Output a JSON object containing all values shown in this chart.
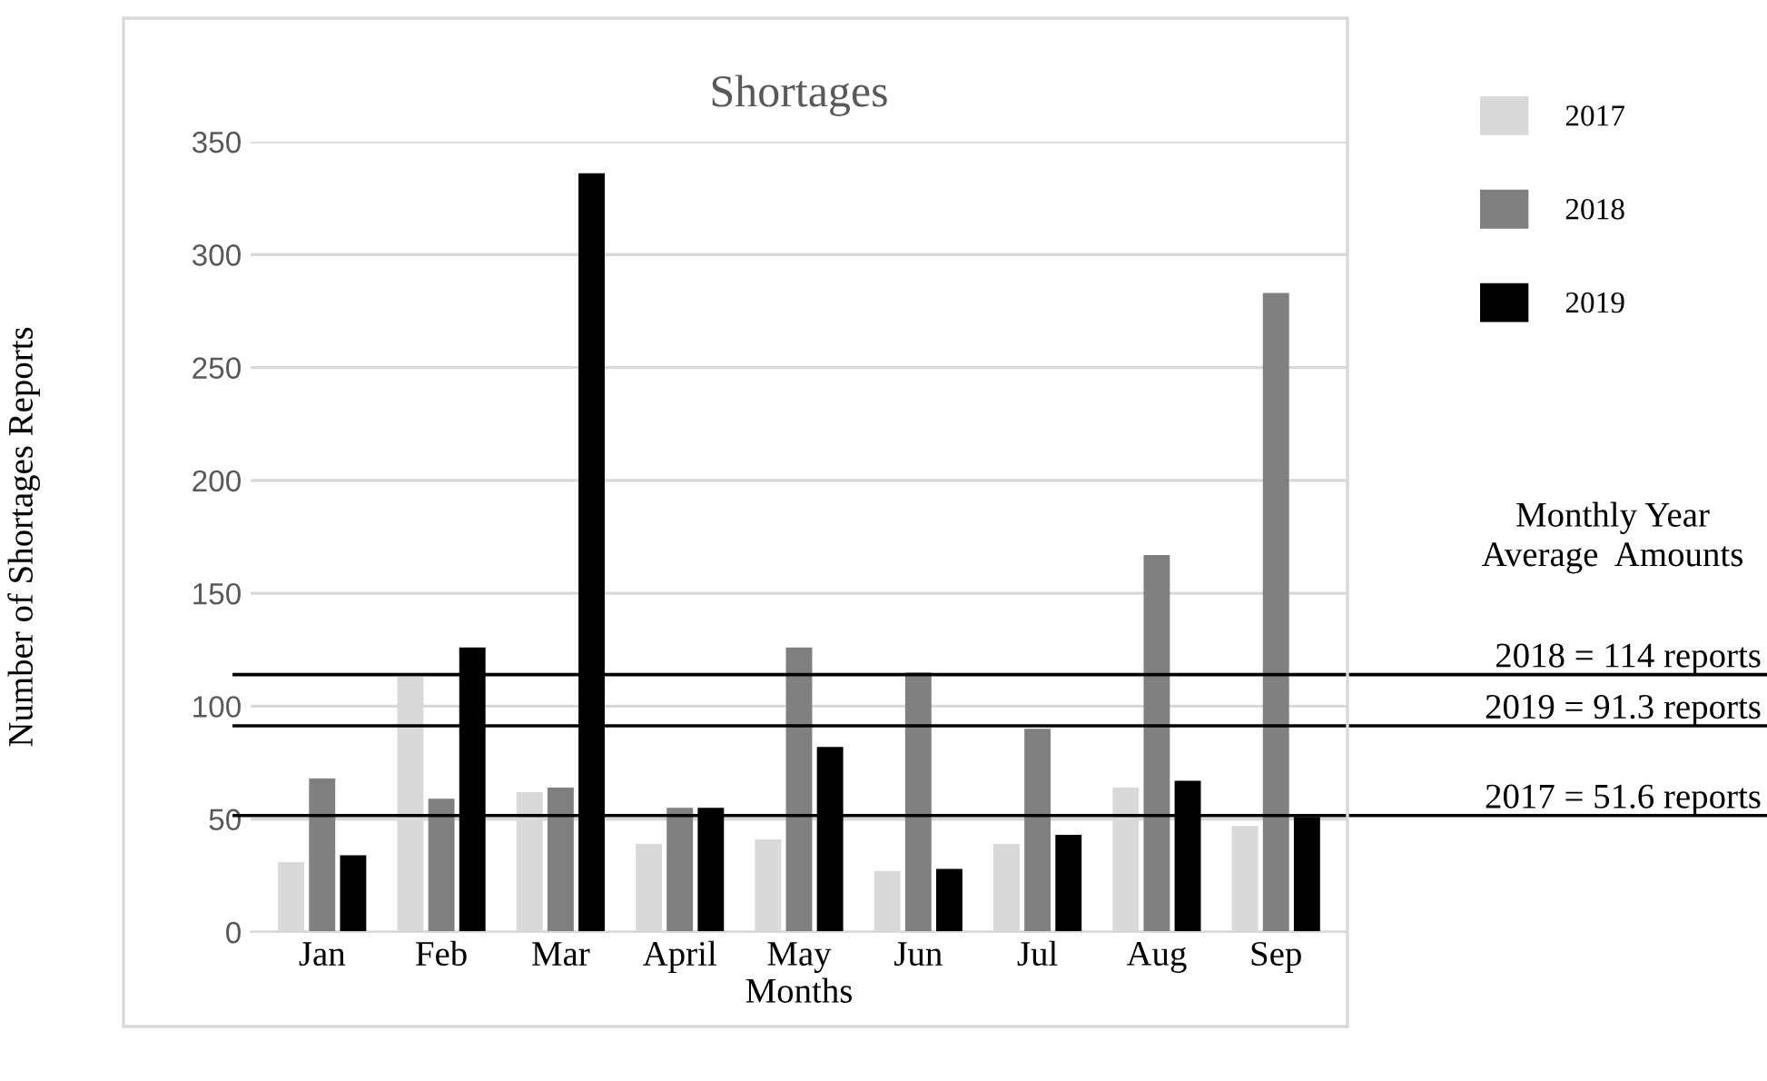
{
  "chart_data": {
    "type": "bar",
    "title": "Shortages",
    "xlabel": "Months",
    "ylabel": "Number of Shortages Reports",
    "categories": [
      "Jan",
      "Feb",
      "Mar",
      "April",
      "May",
      "Jun",
      "Jul",
      "Aug",
      "Sep"
    ],
    "series": [
      {
        "name": "2017",
        "color": "#d9d9d9",
        "values": [
          31,
          113,
          62,
          39,
          41,
          27,
          39,
          64,
          47
        ]
      },
      {
        "name": "2018",
        "color": "#808080",
        "values": [
          68,
          59,
          64,
          55,
          126,
          115,
          90,
          167,
          283
        ]
      },
      {
        "name": "2019",
        "color": "#000000",
        "values": [
          34,
          126,
          336,
          55,
          82,
          28,
          43,
          67,
          51
        ]
      }
    ],
    "ylim": [
      0,
      350
    ],
    "yticks": [
      0,
      50,
      100,
      150,
      200,
      250,
      300,
      350
    ],
    "grid": "y",
    "legend": "top right",
    "ref_lines": [
      {
        "axis": "y",
        "value": 114,
        "label": "2018 = 114 reports",
        "color": "#000000"
      },
      {
        "axis": "y",
        "value": 91.3,
        "label": "2019 = 91.3 reports",
        "color": "#000000"
      },
      {
        "axis": "y",
        "value": 51.6,
        "label": "2017 = 51.6 reports",
        "color": "#000000"
      }
    ],
    "annotations": [
      "Monthly Year\nAverage  Amounts"
    ]
  }
}
